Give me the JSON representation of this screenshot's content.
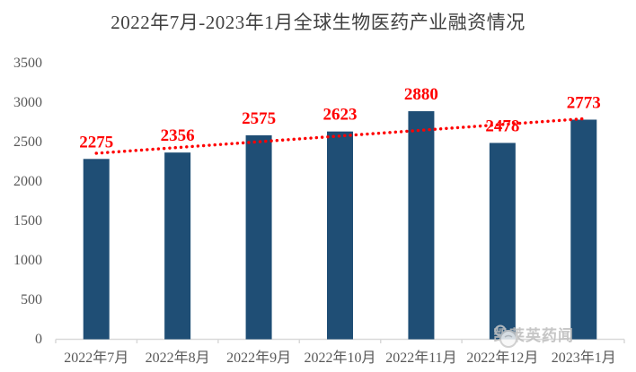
{
  "title": "2022年7月-2023年1月全球生物医药产业融资情况",
  "watermark": {
    "text": "凯莱英药闻",
    "icon": "kailaiying-logo-icon"
  },
  "colors": {
    "bar": "#1F4E75",
    "trend_line": "#FF0000",
    "value_label": "#FF0000",
    "axis_text": "#595959",
    "axis_line": "#D9D9D9",
    "title_text": "#404040",
    "watermark_text": "#BDBDBD"
  },
  "chart_data": {
    "type": "bar",
    "title": "2022年7月-2023年1月全球生物医药产业融资情况",
    "categories": [
      "2022年7月",
      "2022年8月",
      "2022年9月",
      "2022年10月",
      "2022年11月",
      "2022年12月",
      "2023年1月"
    ],
    "values": [
      2275,
      2356,
      2575,
      2623,
      2880,
      2478,
      2773
    ],
    "data_labels": [
      2275,
      2356,
      2575,
      2623,
      2880,
      2478,
      2773
    ],
    "xlabel": "",
    "ylabel": "",
    "ylim": [
      0,
      3500
    ],
    "yticks": [
      0,
      500,
      1000,
      1500,
      2000,
      2500,
      3000,
      3500
    ],
    "grid": false,
    "legend": false,
    "trendline": {
      "type": "linear",
      "style": "dotted"
    }
  }
}
